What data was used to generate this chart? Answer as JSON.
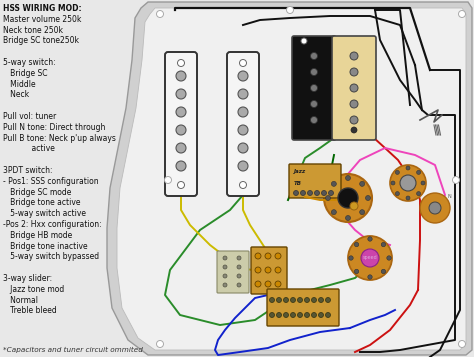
{
  "bg_color": "#e8e8e8",
  "left_text_lines": [
    [
      "HSS WIRING MOD:",
      true
    ],
    [
      "Master volume 250k",
      false
    ],
    [
      "Neck tone 250k",
      false
    ],
    [
      "Bridge SC tone250k",
      false
    ],
    [
      "",
      false
    ],
    [
      "5-way switch:",
      false
    ],
    [
      "   Bridge SC",
      false
    ],
    [
      "   Middle",
      false
    ],
    [
      "   Neck",
      false
    ],
    [
      "",
      false
    ],
    [
      "Pull vol: tuner",
      false
    ],
    [
      "Pull N tone: Direct through",
      false
    ],
    [
      "Pull B tone: Neck p'up always",
      false
    ],
    [
      "            active",
      false
    ],
    [
      "",
      false
    ],
    [
      "3PDT switch:",
      false
    ],
    [
      "- Pos1: SSS configuration",
      false
    ],
    [
      "   Bridge SC mode",
      false
    ],
    [
      "   Bridge tone active",
      false
    ],
    [
      "   5-way switch active",
      false
    ],
    [
      "-Pos 2: Hxx configuration:",
      false
    ],
    [
      "   Bridge HB mode",
      false
    ],
    [
      "   Bridge tone inactive",
      false
    ],
    [
      "   5-way switch bypassed",
      false
    ],
    [
      "",
      false
    ],
    [
      "3-way slider:",
      false
    ],
    [
      "   Jazz tone mod",
      false
    ],
    [
      "   Normal",
      false
    ],
    [
      "   Treble bleed",
      false
    ]
  ],
  "footnote": "*Capacitors and tuner circuit ommited",
  "text_fontsize": 5.5,
  "footnote_fontsize": 5.2,
  "wire_black": "#111111",
  "wire_green": "#2a8c2a",
  "wire_yellow": "#ccbb00",
  "wire_red": "#cc1111",
  "wire_blue": "#1122cc",
  "wire_pink": "#ee44bb",
  "wire_orange": "#cc8800",
  "wire_darkgreen": "#006600",
  "pickguard_outer": "#d0d0d0",
  "pickguard_inner": "#f0f0f0",
  "pickup_white": "#f5f5f5",
  "pickup_black": "#111111",
  "pickup_cream": "#e8d598",
  "pot_color": "#cc8822",
  "pot_dark": "#aa6611",
  "knob_black": "#111111",
  "knob_gray": "#888888",
  "switch_gold": "#cc9933",
  "switch_dark": "#664400",
  "pdt_gray": "#bbbbbb",
  "jack_color": "#cccccc"
}
